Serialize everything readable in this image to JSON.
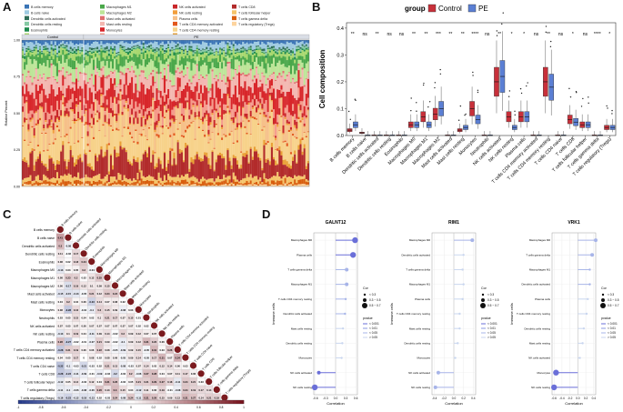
{
  "panels": {
    "a": "A",
    "b": "B",
    "c": "C",
    "d": "D"
  },
  "colors": {
    "control": "#c8303a",
    "pe": "#5b7fd4",
    "cell_palette": [
      "#3a74b6",
      "#9ecae1",
      "#2f6e59",
      "#86c9a4",
      "#1d8a4c",
      "#a8d86e",
      "#4aa84a",
      "#bce597",
      "#e06f6f",
      "#f3b7b0",
      "#d8262a",
      "#f59a8b",
      "#c9272a",
      "#f29e3c",
      "#f6c089",
      "#e2571c",
      "#f7d28a",
      "#e9a035",
      "#b22b2b",
      "#f5c46a",
      "#d95f0e",
      "#fdd49e"
    ]
  },
  "cell_types": [
    "B cells memory",
    "B cells naive",
    "Dendritic cells activated",
    "Dendritic cells resting",
    "Eosinophils",
    "Macrophages M0",
    "Macrophages M1",
    "Macrophages M2",
    "Mast cells activated",
    "Mast cells resting",
    "Monocytes",
    "Neutrophils",
    "NK cells activated",
    "NK cells resting",
    "Plasma cells",
    "T cells CD4 memory activated",
    "T cells CD4 memory resting",
    "T cells CD4 naive",
    "T cells CD8",
    "T cells follicular helper",
    "T cells gamma delta",
    "T cells regulatory (Tregs)"
  ],
  "panel_a": {
    "group_labels": [
      "Control",
      "PE"
    ],
    "ylabel": "Relative Percent",
    "yticks": [
      "1.00",
      "0.75",
      "0.50",
      "0.25",
      "0.00"
    ],
    "composition": [
      0.02,
      0.03,
      0.01,
      0.01,
      0.01,
      0.03,
      0.05,
      0.07,
      0.01,
      0.08,
      0.1,
      0.05,
      0.03,
      0.01,
      0.09,
      0.01,
      0.18,
      0.02,
      0.12,
      0.03,
      0.02,
      0.01
    ]
  },
  "panel_b": {
    "legend_title": "group",
    "legend_items": [
      "Control",
      "PE"
    ],
    "ylabel": "Cell composition",
    "yticks": [
      "0.4",
      "0.3",
      "0.2",
      "0.1",
      "0.0"
    ],
    "ylim": [
      0,
      0.42
    ],
    "significance": [
      "**",
      "ns",
      "**",
      "ns",
      "ns",
      "**",
      "**",
      "***",
      "**",
      "**",
      "****",
      "ns",
      "**",
      "*",
      "*",
      "ns",
      "**",
      "ns",
      "*",
      "ns",
      "****",
      "*"
    ],
    "control_median": [
      0.02,
      0.01,
      0.0,
      0.0,
      0.0,
      0.04,
      0.07,
      0.08,
      0.0,
      0.02,
      0.1,
      0.0,
      0.2,
      0.07,
      0.07,
      0.0,
      0.2,
      0.0,
      0.06,
      0.04,
      0.0,
      0.03
    ],
    "pe_median": [
      0.04,
      0.0,
      0.0,
      0.0,
      0.0,
      0.04,
      0.04,
      0.1,
      0.0,
      0.03,
      0.06,
      0.0,
      0.22,
      0.03,
      0.07,
      0.0,
      0.18,
      0.0,
      0.05,
      0.04,
      0.0,
      0.03
    ]
  },
  "panel_c": {
    "colorbar_ticks": [
      "-1",
      "-0.8",
      "-0.6",
      "-0.4",
      "-0.2",
      "0",
      "0.2",
      "0.4",
      "0.6",
      "0.8",
      "1"
    ],
    "row_values": [
      [
        "0.41"
      ],
      [
        "0.3",
        "-0.08"
      ],
      [
        "0.11",
        "-0.02",
        "0.17"
      ],
      [
        "0.08",
        "0.02",
        "0.18",
        "0.24"
      ],
      [
        "-0.13",
        "0.03",
        "0.05",
        "0.2",
        "-0.04"
      ],
      [
        "0.08",
        "0.23",
        "0.2",
        "0.02",
        "0.12",
        "0.25"
      ],
      [
        "0.06",
        "-0.17",
        "0.19",
        "0.12",
        "0.1",
        "0.09",
        "0.15"
      ],
      [
        "-0.15",
        "-0.15",
        "-0.13",
        "-0.05",
        "0.21",
        "0.12",
        "0.24",
        "0.24"
      ],
      [
        "0.04",
        "0.2",
        "0.04",
        "0.06",
        "-0.23",
        "0.14",
        "0.07",
        "0.08",
        "0.02"
      ],
      [
        "0.08",
        "-0.28",
        "0.16",
        "-0.04",
        "-0.1",
        "0.2",
        "0.15",
        "0.09",
        "-0.08",
        "0.03"
      ],
      [
        "0.03",
        "0.05",
        "0.15",
        "0.04",
        "0.02",
        "0.1",
        "0.21",
        "0.17",
        "0.07",
        "0.15",
        "0.01"
      ],
      [
        "0.07",
        "0.05",
        "0.07",
        "0.06",
        "0.07",
        "0.07",
        "0.07",
        "0.07",
        "0.07",
        "0.07",
        "0.02",
        "0.02"
      ],
      [
        "-0.13",
        "0.1",
        "0.19",
        "0.04",
        "-0.11",
        "0.09",
        "0.14",
        "-0.02",
        "0.2",
        "0.09",
        "0.12",
        "0.07",
        "0.07"
      ],
      [
        "0.28",
        "-0.27",
        "-0.02",
        "-0.01",
        "-0.07",
        "0.21",
        "0.09",
        "-0.02",
        "-0.1",
        "0.09",
        "0.12",
        "0.31",
        "0.22",
        "0.06"
      ],
      [
        "-0.28",
        "0.21",
        "0.19",
        "0.06",
        "0.06",
        "0.22",
        "0.08",
        "-0.05",
        "-0.09",
        "0.09",
        "0.15",
        "-0.05",
        "0.31",
        "0.03",
        "0.26"
      ],
      [
        "0.04",
        "0.05",
        "0.17",
        "0",
        "0.08",
        "0.02",
        "0.08",
        "0.06",
        "-0.05",
        "0.09",
        "0.14",
        "-0.05",
        "0.17",
        "0.31",
        "0.07",
        "0.34"
      ],
      [
        "-0.32",
        "-0.1",
        "-0.03",
        "-0.21",
        "-0.03",
        "0.02",
        "0.21",
        "0.13",
        "-0.08",
        "-0.03",
        "0.07",
        "0.14",
        "0.03",
        "0.12",
        "0.14",
        "0.06",
        "0.03"
      ],
      [
        "-0.28",
        "-0.23",
        "-0.11",
        "-0.09",
        "-0.01",
        "-0.09",
        "-0.03",
        "-0.2",
        "-0.02",
        "0.2",
        "-0.06",
        "0.27",
        "0.28",
        "0.04",
        "0.07",
        "0.11",
        "0.17",
        "0.06"
      ],
      [
        "-0.12",
        "0.05",
        "0.14",
        "-0.03",
        "0.12",
        "0.04",
        "0.31",
        "0.26",
        "-0.02",
        "0.05",
        "0.21",
        "0.21",
        "0.29",
        "0.27",
        "0.18",
        "-0.11",
        "0.24",
        "0.21",
        "0.03"
      ],
      [
        "-0.11",
        "-0.1",
        "-0.06",
        "-0.08",
        "-0.06",
        "0.26",
        "0.13",
        "0.3",
        "0.15",
        "0.04",
        "-0.12",
        "0.11",
        "0.06",
        "0.19",
        "-0.01",
        "-0.08",
        "0.24",
        "0.19",
        "0.17",
        "0.14"
      ],
      [
        "-0.16",
        "-0.23",
        "-0.12",
        "-0.16",
        "-0.13",
        "0.02",
        "-0.03",
        "0.24",
        "-0.08",
        "0.24",
        "-0.11",
        "0.31",
        "0.26",
        "0.15",
        "0.09",
        "0.13",
        "0.31",
        "0.27",
        "0.14",
        "0.21",
        "0.19"
      ]
    ]
  },
  "panel_d": {
    "plots": [
      {
        "title": "GALNT12",
        "xticks": [
          "-0.6",
          "-0.3",
          "0.0",
          "0.3",
          "0.6"
        ],
        "rows": [
          "Macrophages M0",
          "Plasma cells",
          "T cells gamma delta",
          "Macrophages M1",
          "T cells CD4 memory resting",
          "Dendritic cells activated",
          "Mast cells resting",
          "Dendritic cells resting",
          "Monocytes",
          "NK cells activated",
          "NK cells resting"
        ],
        "cor": [
          0.58,
          0.52,
          0.33,
          0.33,
          0.3,
          0.28,
          0.22,
          0.2,
          0.18,
          -0.5,
          -0.62
        ]
      },
      {
        "title": "RIM1",
        "xticks": [
          "-0.4",
          "-0.2",
          "0.0",
          "0.2",
          "0.4"
        ],
        "rows": [
          "Macrophages M0",
          "Dendritic cells activated",
          "T cells gamma delta",
          "Macrophages M1",
          "Plasma cells",
          "T cells CD4 memory resting",
          "Mast cells resting",
          "Dendritic cells resting",
          "Monocytes",
          "NK cells activated",
          "NK cells resting"
        ],
        "cor": [
          0.38,
          0.2,
          0.18,
          0.2,
          0.18,
          0.12,
          0.12,
          0.08,
          0.03,
          -0.32,
          -0.38
        ]
      },
      {
        "title": "VRK1",
        "xticks": [
          "-0.6",
          "-0.4",
          "-0.2",
          "0.0",
          "0.2",
          "0.4"
        ],
        "rows": [
          "Macrophages M0",
          "T cells gamma delta",
          "Macrophages M1",
          "Dendritic cells activated",
          "Plasma cells",
          "T cells CD4 memory resting",
          "Dendritic cells resting",
          "Mast cells resting",
          "NK cells activated",
          "Monocytes",
          "NK cells resting"
        ],
        "cor": [
          0.45,
          0.36,
          0.3,
          0.3,
          0.25,
          0.22,
          0.15,
          0.12,
          0.05,
          -0.55,
          -0.6
        ]
      }
    ],
    "ylabel": "Immune cells",
    "xlabel": "Correlation",
    "legend_cor_title": "Cor",
    "legend_cor_items": [
      "< 0.3",
      "0.3 ~ 0.5",
      "0.5 ~ 0.7"
    ],
    "legend_p_title": "pvalue",
    "legend_p_items": [
      "< 0.001",
      "< 0.01",
      "< 0.05",
      "> 0.05"
    ]
  }
}
